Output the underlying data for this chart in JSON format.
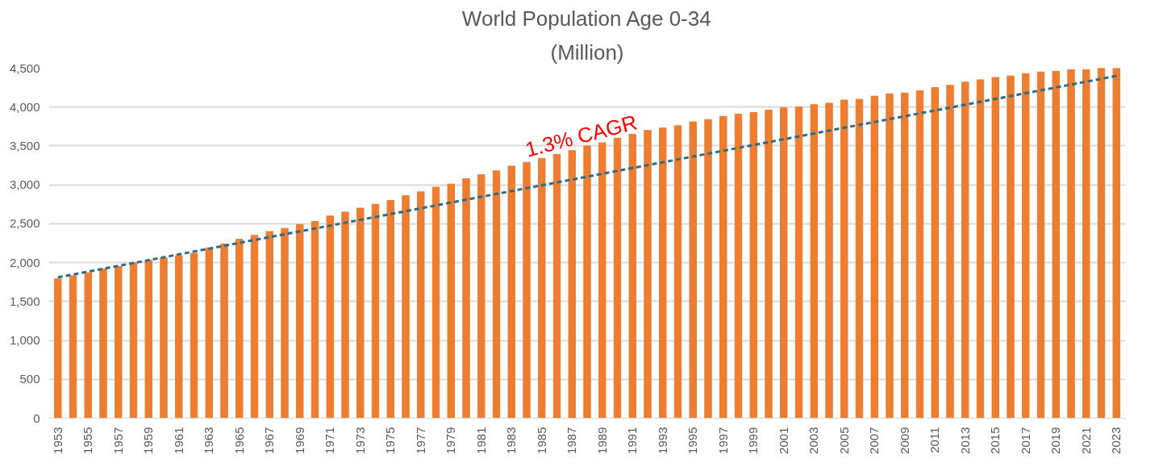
{
  "chart_data": {
    "type": "bar",
    "title": "World Population Age 0-34",
    "subtitle": "(Million)",
    "x": [
      1953,
      1954,
      1955,
      1956,
      1957,
      1958,
      1959,
      1960,
      1961,
      1962,
      1963,
      1964,
      1965,
      1966,
      1967,
      1968,
      1969,
      1970,
      1971,
      1972,
      1973,
      1974,
      1975,
      1976,
      1977,
      1978,
      1979,
      1980,
      1981,
      1982,
      1983,
      1984,
      1985,
      1986,
      1987,
      1988,
      1989,
      1990,
      1991,
      1992,
      1993,
      1994,
      1995,
      1996,
      1997,
      1998,
      1999,
      2000,
      2001,
      2002,
      2003,
      2004,
      2005,
      2006,
      2007,
      2008,
      2009,
      2010,
      2011,
      2012,
      2013,
      2014,
      2015,
      2016,
      2017,
      2018,
      2019,
      2020,
      2021,
      2022,
      2023
    ],
    "series": [
      {
        "color": "#ed7d31",
        "values": [
          1790,
          1830,
          1870,
          1920,
          1950,
          2000,
          2030,
          2060,
          2090,
          2120,
          2190,
          2240,
          2300,
          2350,
          2400,
          2440,
          2490,
          2530,
          2600,
          2650,
          2700,
          2750,
          2800,
          2860,
          2910,
          2970,
          3010,
          3080,
          3130,
          3180,
          3240,
          3290,
          3340,
          3390,
          3440,
          3500,
          3540,
          3600,
          3650,
          3700,
          3730,
          3760,
          3810,
          3840,
          3880,
          3910,
          3930,
          3960,
          3990,
          4000,
          4030,
          4050,
          4090,
          4100,
          4140,
          4170,
          4180,
          4210,
          4250,
          4280,
          4320,
          4350,
          4380,
          4400,
          4430,
          4450,
          4460,
          4480,
          4480,
          4500,
          4500
        ]
      },
      {
        "type": "line",
        "color": "#2b6c8c",
        "line_style": "dashed",
        "x": [
          1953,
          2023
        ],
        "values": [
          1810,
          4400
        ]
      }
    ],
    "annotations": [
      "1.3% CAGR"
    ],
    "xlim": [
      1952.4,
      2023.6
    ],
    "xticks": [
      1953,
      1955,
      1957,
      1959,
      1961,
      1963,
      1965,
      1967,
      1969,
      1971,
      1973,
      1975,
      1977,
      1979,
      1981,
      1983,
      1985,
      1987,
      1989,
      1991,
      1993,
      1995,
      1997,
      1999,
      2001,
      2003,
      2005,
      2007,
      2009,
      2011,
      2013,
      2015,
      2017,
      2019,
      2021,
      2023
    ],
    "ylim": [
      0,
      4500
    ],
    "yticks": [
      0,
      500,
      {
        "value": 1000,
        "label": "1,000"
      },
      {
        "value": 1500,
        "label": "1,500"
      },
      {
        "value": 2000,
        "label": "2,000"
      },
      {
        "value": 2500,
        "label": "2,500"
      },
      {
        "value": 3000,
        "label": "3,000"
      },
      {
        "value": 3500,
        "label": "3,500"
      },
      {
        "value": 4000,
        "label": "4,000"
      },
      {
        "value": 4500,
        "label": "4,500"
      }
    ],
    "grid": "y"
  }
}
